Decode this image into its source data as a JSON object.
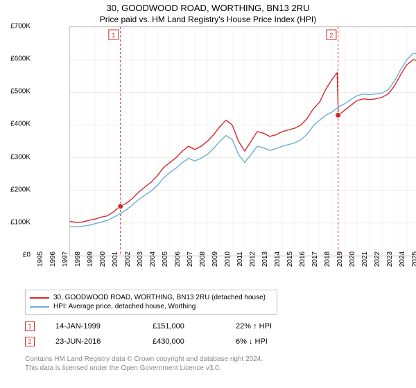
{
  "title": "30, GOODWOOD ROAD, WORTHING, BN13 2RU",
  "subtitle": "Price paid vs. HM Land Registry's House Price Index (HPI)",
  "chart": {
    "type": "line",
    "background_color": "#ffffff",
    "border_color": "#c0c0c0",
    "grid_minor_color": "#e8e8e8",
    "grid_major_color": "#d8d8d8",
    "ylim": [
      0,
      700000
    ],
    "ytick_step": 100000,
    "y_prefix": "£",
    "y_suffix": "K",
    "y_labels": [
      "£0",
      "£100K",
      "£200K",
      "£300K",
      "£400K",
      "£500K",
      "£600K",
      "£700K"
    ],
    "x_years": [
      1995,
      1996,
      1997,
      1998,
      1999,
      2000,
      2001,
      2002,
      2003,
      2004,
      2005,
      2006,
      2007,
      2008,
      2009,
      2010,
      2011,
      2012,
      2013,
      2014,
      2015,
      2016,
      2017,
      2018,
      2019,
      2020,
      2021,
      2022,
      2023,
      2024,
      2025
    ],
    "title_fontsize": 13,
    "label_fontsize": 10,
    "series": [
      {
        "name": "30, GOODWOOD ROAD, WORTHING, BN13 2RU (detached house)",
        "color": "#d62728",
        "line_width": 1.4,
        "values_by_year": {
          "1995": 105000,
          "1995.5": 102000,
          "1996": 103000,
          "1996.5": 108000,
          "1997": 112000,
          "1997.5": 118000,
          "1998": 122000,
          "1998.5": 135000,
          "1999": 151000,
          "1999.5": 160000,
          "2000": 175000,
          "2000.5": 195000,
          "2001": 210000,
          "2001.5": 225000,
          "2002": 245000,
          "2002.5": 270000,
          "2003": 285000,
          "2003.5": 300000,
          "2004": 320000,
          "2004.5": 335000,
          "2005": 325000,
          "2005.5": 335000,
          "2006": 350000,
          "2006.5": 370000,
          "2007": 395000,
          "2007.5": 415000,
          "2008": 400000,
          "2008.5": 350000,
          "2009": 320000,
          "2009.5": 350000,
          "2010": 380000,
          "2010.5": 375000,
          "2011": 365000,
          "2011.5": 370000,
          "2012": 380000,
          "2012.5": 385000,
          "2013": 390000,
          "2013.5": 400000,
          "2014": 420000,
          "2014.5": 450000,
          "2015": 470000,
          "2015.5": 510000,
          "2016": 540000,
          "2016.4": 560000,
          "2016.5": 430000,
          "2017": 445000,
          "2017.5": 460000,
          "2018": 475000,
          "2018.5": 480000,
          "2019": 478000,
          "2019.5": 480000,
          "2020": 485000,
          "2020.5": 495000,
          "2021": 520000,
          "2021.5": 555000,
          "2022": 585000,
          "2022.5": 600000,
          "2023": 595000,
          "2023.5": 585000,
          "2024": 580000,
          "2024.5": 580000,
          "2025": 582000
        }
      },
      {
        "name": "HPI: Average price, detached house, Worthing",
        "color": "#6baed6",
        "line_width": 1.4,
        "values_by_year": {
          "1995": 90000,
          "1995.5": 88000,
          "1996": 90000,
          "1996.5": 93000,
          "1997": 98000,
          "1997.5": 103000,
          "1998": 108000,
          "1998.5": 118000,
          "1999": 128000,
          "1999.5": 140000,
          "2000": 155000,
          "2000.5": 172000,
          "2001": 185000,
          "2001.5": 198000,
          "2002": 215000,
          "2002.5": 238000,
          "2003": 255000,
          "2003.5": 268000,
          "2004": 285000,
          "2004.5": 298000,
          "2005": 290000,
          "2005.5": 298000,
          "2006": 310000,
          "2006.5": 328000,
          "2007": 350000,
          "2007.5": 368000,
          "2008": 355000,
          "2008.5": 310000,
          "2009": 285000,
          "2009.5": 310000,
          "2010": 335000,
          "2010.5": 330000,
          "2011": 322000,
          "2011.5": 328000,
          "2012": 335000,
          "2012.5": 340000,
          "2013": 345000,
          "2013.5": 355000,
          "2014": 372000,
          "2014.5": 398000,
          "2015": 415000,
          "2015.5": 430000,
          "2016": 440000,
          "2016.5": 455000,
          "2017": 465000,
          "2017.5": 478000,
          "2018": 490000,
          "2018.5": 495000,
          "2019": 493000,
          "2019.5": 495000,
          "2020": 498000,
          "2020.5": 508000,
          "2021": 535000,
          "2021.5": 570000,
          "2022": 600000,
          "2022.5": 620000,
          "2023": 615000,
          "2023.5": 608000,
          "2024": 620000,
          "2024.5": 628000,
          "2025": 625000
        }
      }
    ],
    "markers": [
      {
        "label": "1",
        "x_year": 1999.04,
        "y_value": 151000,
        "color": "#d62728",
        "dashed_line_color": "#d62728",
        "marker_fill": "#d62728",
        "label_position_year": 1998.6,
        "date": "14-JAN-1999",
        "price": "£151,000",
        "delta": "22% ↑ HPI"
      },
      {
        "label": "2",
        "x_year": 2016.48,
        "y_value": 430000,
        "color": "#d62728",
        "dashed_line_color": "#d62728",
        "marker_fill": "#d62728",
        "label_position_year": 2016.05,
        "date": "23-JUN-2016",
        "price": "£430,000",
        "delta": "6% ↓ HPI"
      }
    ]
  },
  "legend": {
    "border_color": "#c0c0c0",
    "items": [
      {
        "label": "30, GOODWOOD ROAD, WORTHING, BN13 2RU (detached house)",
        "color": "#d62728"
      },
      {
        "label": "HPI: Average price, detached house, Worthing",
        "color": "#6baed6"
      }
    ]
  },
  "attribution": {
    "line1": "Contains HM Land Registry data © Crown copyright and database right 2024.",
    "line2": "This data is licensed under the Open Government Licence v3.0.",
    "color": "#888888"
  }
}
